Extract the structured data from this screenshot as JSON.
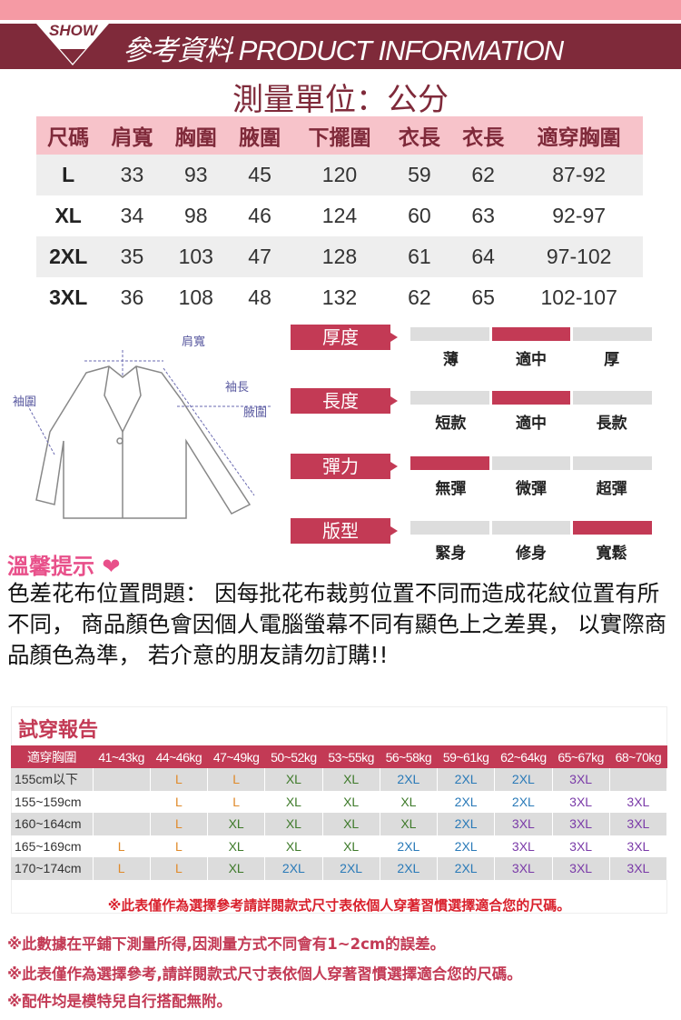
{
  "header": {
    "badge": "SHOW",
    "title": "參考資料 PRODUCT INFORMATION",
    "unit": "測量單位：公分"
  },
  "size_table": {
    "columns": [
      "尺碼",
      "肩寬",
      "胸圍",
      "腋圍",
      "下擺圍",
      "衣長",
      "衣長",
      "適穿胸圍"
    ],
    "rows": [
      [
        "L",
        "33",
        "93",
        "45",
        "120",
        "59",
        "62",
        "87-92"
      ],
      [
        "XL",
        "34",
        "98",
        "46",
        "124",
        "60",
        "63",
        "92-97"
      ],
      [
        "2XL",
        "35",
        "103",
        "47",
        "128",
        "61",
        "64",
        "97-102"
      ],
      [
        "3XL",
        "36",
        "108",
        "48",
        "132",
        "62",
        "65",
        "102-107"
      ]
    ]
  },
  "diagram": {
    "labels": {
      "shoulder": "肩寬",
      "sleeve": "袖長",
      "armhole": "腋圍",
      "cuff": "袖圍"
    }
  },
  "attributes": [
    {
      "name": "厚度",
      "options": [
        "薄",
        "適中",
        "厚"
      ],
      "selected": 1
    },
    {
      "name": "長度",
      "options": [
        "短款",
        "適中",
        "長款"
      ],
      "selected": 1
    },
    {
      "name": "彈力",
      "options": [
        "無彈",
        "微彈",
        "超彈"
      ],
      "selected": 0
    },
    {
      "name": "版型",
      "options": [
        "緊身",
        "修身",
        "寬鬆"
      ],
      "selected": 2
    }
  ],
  "tips": {
    "title": "溫馨提示",
    "body": "色差花布位置問題：  因每批花布裁剪位置不同而造成花紋位置有所不同，  商品顏色會因個人電腦螢幕不同有顯色上之差異，  以實際商品顏色為準，  若介意的朋友請勿訂購!!"
  },
  "try_report": {
    "title": "試穿報告",
    "columns": [
      "適穿胸圍",
      "41~43kg",
      "44~46kg",
      "47~49kg",
      "50~52kg",
      "53~55kg",
      "56~58kg",
      "59~61kg",
      "62~64kg",
      "65~67kg",
      "68~70kg"
    ],
    "rows": [
      [
        "155cm以下",
        "",
        "L",
        "L",
        "XL",
        "XL",
        "2XL",
        "2XL",
        "2XL",
        "3XL",
        ""
      ],
      [
        "155~159cm",
        "",
        "L",
        "L",
        "XL",
        "XL",
        "XL",
        "2XL",
        "2XL",
        "3XL",
        "3XL"
      ],
      [
        "160~164cm",
        "",
        "L",
        "XL",
        "XL",
        "XL",
        "XL",
        "2XL",
        "3XL",
        "3XL",
        "3XL"
      ],
      [
        "165~169cm",
        "L",
        "L",
        "XL",
        "XL",
        "XL",
        "2XL",
        "2XL",
        "3XL",
        "3XL",
        "3XL"
      ],
      [
        "170~174cm",
        "L",
        "L",
        "XL",
        "2XL",
        "2XL",
        "2XL",
        "2XL",
        "3XL",
        "3XL",
        "3XL"
      ]
    ],
    "note": "※此表僅作為選擇參考請詳閱款式尺寸表依個人穿著習慣選擇適合您的尺碼。",
    "size_colors": {
      "L": "#e08a2a",
      "XL": "#3e7a2a",
      "2XL": "#2a7ab8",
      "3XL": "#7a3aa8"
    }
  },
  "notes": [
    "※此數據在平鋪下測量所得,因測量方式不同會有1~2cm的誤差。",
    "※此表僅作為選擇參考,請詳閱款式尺寸表依個人穿著習慣選擇適合您的尺碼。",
    "※配件均是模特兒自行搭配無附。"
  ]
}
